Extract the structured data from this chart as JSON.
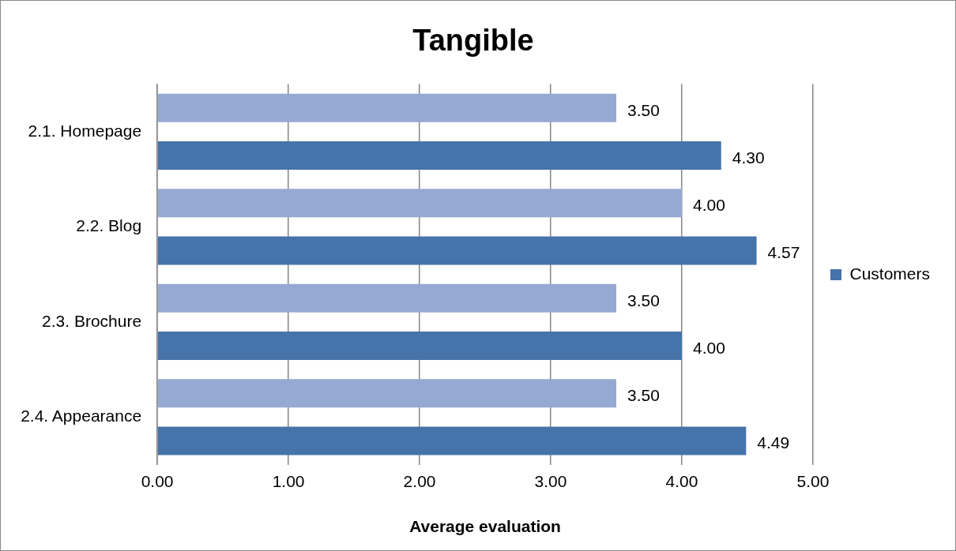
{
  "chart_data": {
    "type": "bar",
    "orientation": "horizontal",
    "title": "Tangible",
    "xlabel": "Average evaluation",
    "categories": [
      "2.1. Homepage",
      "2.2. Blog",
      "2.3. Brochure",
      "2.4. Appearance"
    ],
    "series": [
      {
        "color": "#95a9d3",
        "values": [
          3.5,
          4.0,
          3.5,
          3.5
        ],
        "value_labels": [
          "3.50",
          "4.00",
          "3.50",
          "3.50"
        ]
      },
      {
        "name": "Customers",
        "color": "#4673aa",
        "values": [
          4.3,
          4.57,
          4.0,
          4.49
        ],
        "value_labels": [
          "4.30",
          "4.57",
          "4.00",
          "4.49"
        ]
      }
    ],
    "xlim": [
      0,
      5
    ],
    "xticks": [
      {
        "value": 0,
        "label": "0.00"
      },
      {
        "value": 1,
        "label": "1.00"
      },
      {
        "value": 2,
        "label": "2.00"
      },
      {
        "value": 3,
        "label": "3.00"
      },
      {
        "value": 4,
        "label": "4.00"
      },
      {
        "value": 5,
        "label": "5.00"
      }
    ],
    "grid": "x",
    "legend": "right"
  }
}
